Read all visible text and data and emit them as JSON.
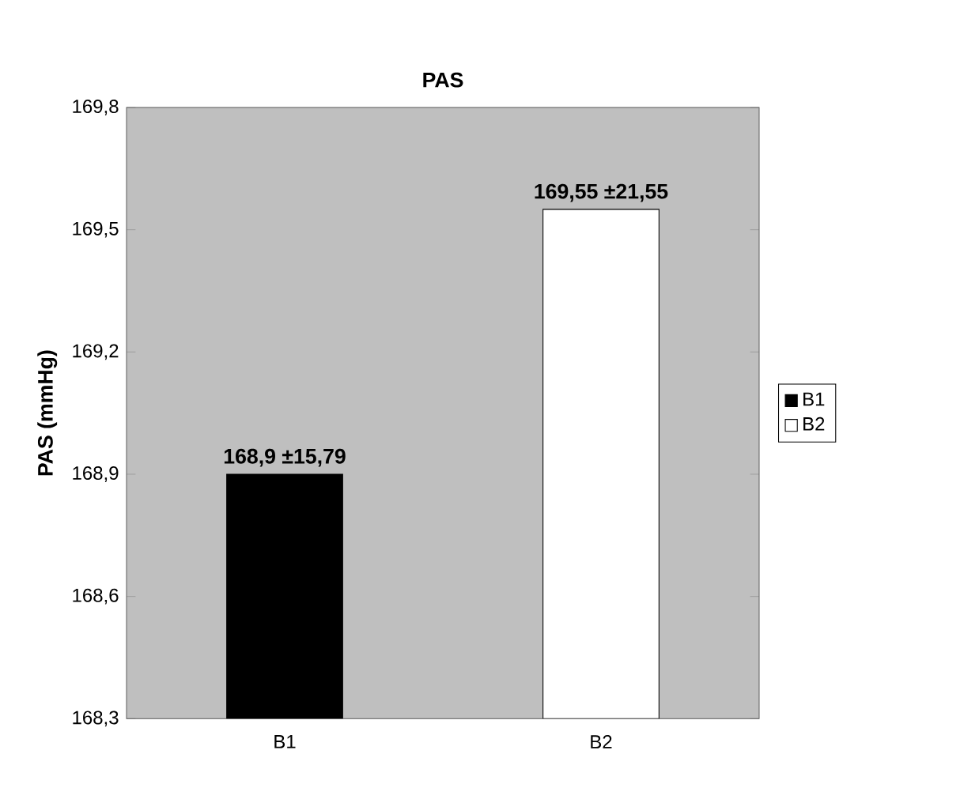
{
  "chart_data": {
    "type": "bar",
    "title": "PAS",
    "ylabel": "PAS (mmHg)",
    "categories": [
      "B1",
      "B2"
    ],
    "series": [
      {
        "name": "B1",
        "color": "#000000",
        "values": [
          168.9,
          null
        ],
        "value_labels": [
          "168,9 ±15,79",
          null
        ]
      },
      {
        "name": "B2",
        "color": "#ffffff",
        "values": [
          null,
          169.55
        ],
        "value_labels": [
          null,
          "169,55 ±21,55"
        ]
      }
    ],
    "ylim": [
      168.3,
      169.8
    ],
    "yticks": [
      {
        "value": 168.3,
        "label": "168,3"
      },
      {
        "value": 168.6,
        "label": "168,6"
      },
      {
        "value": 168.9,
        "label": "168,9"
      },
      {
        "value": 169.2,
        "label": "169,2"
      },
      {
        "value": 169.5,
        "label": "169,5"
      },
      {
        "value": 169.8,
        "label": "169,8"
      }
    ],
    "grid": "y",
    "legend": "right"
  }
}
